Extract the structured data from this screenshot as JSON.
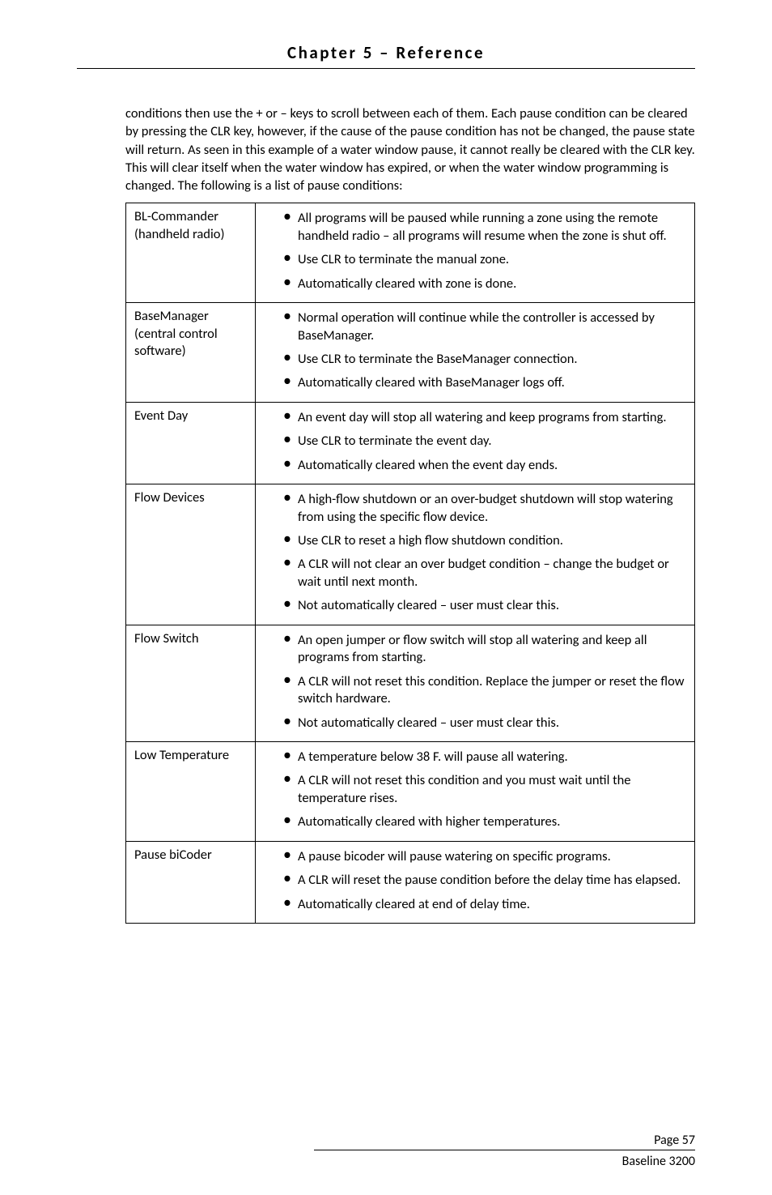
{
  "header": {
    "title": "Chapter 5 – Reference"
  },
  "intro": "conditions then use the + or – keys to scroll between each of them.  Each pause condition can be cleared by pressing the CLR key, however, if the cause of the pause condition has not be changed, the pause state will return.  As seen in this example of a water window pause, it cannot really be cleared with the CLR key.  This will clear itself when the water window has expired, or when the water window programming is changed.  The following is a list of pause conditions:",
  "rows": [
    {
      "label": "BL-Commander (handheld radio)",
      "items": [
        "All programs will be paused while running a zone using the remote handheld radio – all programs will resume when the zone is shut off.",
        "Use CLR to terminate the manual zone.",
        "Automatically cleared with zone is done."
      ]
    },
    {
      "label": "BaseManager (central control software)",
      "items": [
        "Normal operation will continue while the controller is accessed by BaseManager.",
        "Use CLR to terminate the BaseManager connection.",
        "Automatically cleared with BaseManager logs off."
      ]
    },
    {
      "label": "Event Day",
      "items": [
        "An event day will stop all watering and keep programs from starting.",
        "Use CLR to terminate the event day.",
        "Automatically cleared when the event day ends."
      ]
    },
    {
      "label": "Flow Devices",
      "items": [
        "A high-flow shutdown or an over-budget shutdown will stop watering from using the specific flow device.",
        "Use CLR to reset a high flow shutdown condition.",
        "A CLR will not clear an over budget condition – change the budget or wait until next month.",
        "Not automatically cleared – user must clear this."
      ]
    },
    {
      "label": "Flow Switch",
      "items": [
        "An open jumper or flow switch will stop all watering and keep all programs from starting.",
        "A CLR will not reset this condition.  Replace the jumper or reset the flow switch hardware.",
        "Not automatically cleared – user must clear this."
      ]
    },
    {
      "label": "Low Temperature",
      "items": [
        "A temperature below 38 F. will pause all watering.",
        "A CLR will not reset this condition and you must wait until the temperature rises.",
        "Automatically cleared with higher temperatures."
      ]
    },
    {
      "label": "Pause biCoder",
      "items": [
        "A pause bicoder will pause watering on specific programs.",
        "A CLR will reset the pause condition before the delay time has elapsed.",
        "Automatically cleared at end of delay time."
      ]
    }
  ],
  "footer": {
    "page_label": "Page 57",
    "doc_label": "Baseline 3200"
  }
}
